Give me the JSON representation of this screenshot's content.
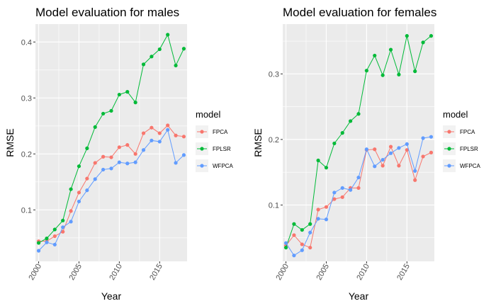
{
  "chart_data": [
    {
      "type": "line",
      "title": "Model evaluation for males",
      "xlabel": "Year",
      "ylabel": "RMSE",
      "xlim": [
        1999.6,
        2018.4
      ],
      "ylim": [
        0.008,
        0.432
      ],
      "xticks": [
        2000,
        2005,
        2010,
        2015
      ],
      "yticks": [
        0.1,
        0.2,
        0.3,
        0.4
      ],
      "x": [
        2000,
        2001,
        2002,
        2003,
        2004,
        2005,
        2006,
        2007,
        2008,
        2009,
        2010,
        2011,
        2012,
        2013,
        2014,
        2015,
        2016,
        2017,
        2018
      ],
      "series": [
        {
          "name": "FPCA",
          "color": "#F8766D",
          "values": [
            0.044,
            0.044,
            0.053,
            0.061,
            0.098,
            0.131,
            0.156,
            0.184,
            0.195,
            0.194,
            0.212,
            0.216,
            0.2,
            0.237,
            0.247,
            0.237,
            0.251,
            0.233,
            0.231
          ]
        },
        {
          "name": "FPLSR",
          "color": "#00BA38",
          "values": [
            0.041,
            0.049,
            0.065,
            0.081,
            0.137,
            0.178,
            0.21,
            0.248,
            0.272,
            0.277,
            0.306,
            0.311,
            0.292,
            0.36,
            0.374,
            0.387,
            0.413,
            0.358,
            0.388
          ]
        },
        {
          "name": "WFPCA",
          "color": "#619CFF",
          "values": [
            0.027,
            0.042,
            0.038,
            0.069,
            0.079,
            0.115,
            0.135,
            0.155,
            0.172,
            0.174,
            0.185,
            0.183,
            0.185,
            0.207,
            0.224,
            0.222,
            0.243,
            0.184,
            0.198
          ]
        }
      ],
      "legend_title": "model",
      "legend_position": "right",
      "grid": true
    },
    {
      "type": "line",
      "title": "Model evaluation for females",
      "xlabel": "Year",
      "ylabel": "RMSE",
      "xlim": [
        1999.6,
        2018.4
      ],
      "ylim": [
        0.014,
        0.376
      ],
      "xticks": [
        2000,
        2005,
        2010,
        2015
      ],
      "yticks": [
        0.1,
        0.2,
        0.3
      ],
      "x": [
        2000,
        2001,
        2002,
        2003,
        2004,
        2005,
        2006,
        2007,
        2008,
        2009,
        2010,
        2011,
        2012,
        2013,
        2014,
        2015,
        2016,
        2017,
        2018
      ],
      "series": [
        {
          "name": "FPCA",
          "color": "#F8766D",
          "values": [
            0.038,
            0.054,
            0.04,
            0.035,
            0.093,
            0.097,
            0.109,
            0.112,
            0.126,
            0.126,
            0.184,
            0.185,
            0.16,
            0.189,
            0.16,
            0.184,
            0.138,
            0.174,
            0.18
          ]
        },
        {
          "name": "FPLSR",
          "color": "#00BA38",
          "values": [
            0.035,
            0.071,
            0.062,
            0.071,
            0.168,
            0.157,
            0.194,
            0.21,
            0.228,
            0.239,
            0.305,
            0.328,
            0.298,
            0.337,
            0.299,
            0.358,
            0.304,
            0.348,
            0.358
          ]
        },
        {
          "name": "WFPCA",
          "color": "#619CFF",
          "values": [
            0.042,
            0.023,
            0.031,
            0.058,
            0.079,
            0.078,
            0.119,
            0.126,
            0.123,
            0.142,
            0.185,
            0.159,
            0.169,
            0.179,
            0.187,
            0.193,
            0.152,
            0.202,
            0.204
          ]
        }
      ],
      "legend_title": "model",
      "legend_position": "right",
      "grid": true
    }
  ]
}
